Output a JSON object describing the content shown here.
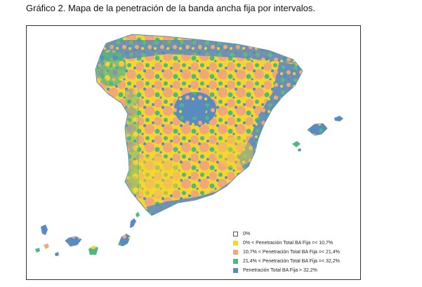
{
  "figure": {
    "title": "Gráfico 2. Mapa de la penetración de la banda ancha fija por intervalos."
  },
  "legend": {
    "items": [
      {
        "label": "0%",
        "color": "#ffffff",
        "border": "#555555"
      },
      {
        "label": "0% < Penetración Total BA Fija =< 10,7%",
        "color": "#f5d531",
        "border": "#f5d531"
      },
      {
        "label": "10,7% < Penetración Total BA Fija =< 21,4%",
        "color": "#f0a878",
        "border": "#f0a878"
      },
      {
        "label": "21,4% < Penetración Total BA Fija =< 32,2%",
        "color": "#4fb87e",
        "border": "#4fb87e"
      },
      {
        "label": "Penetración Total BA Fija > 32,2%",
        "color": "#5a8bbf",
        "border": "#5a8bbf"
      }
    ]
  },
  "map": {
    "regions": [
      "peninsula-iberica",
      "islas-baleares",
      "islas-canarias"
    ]
  }
}
